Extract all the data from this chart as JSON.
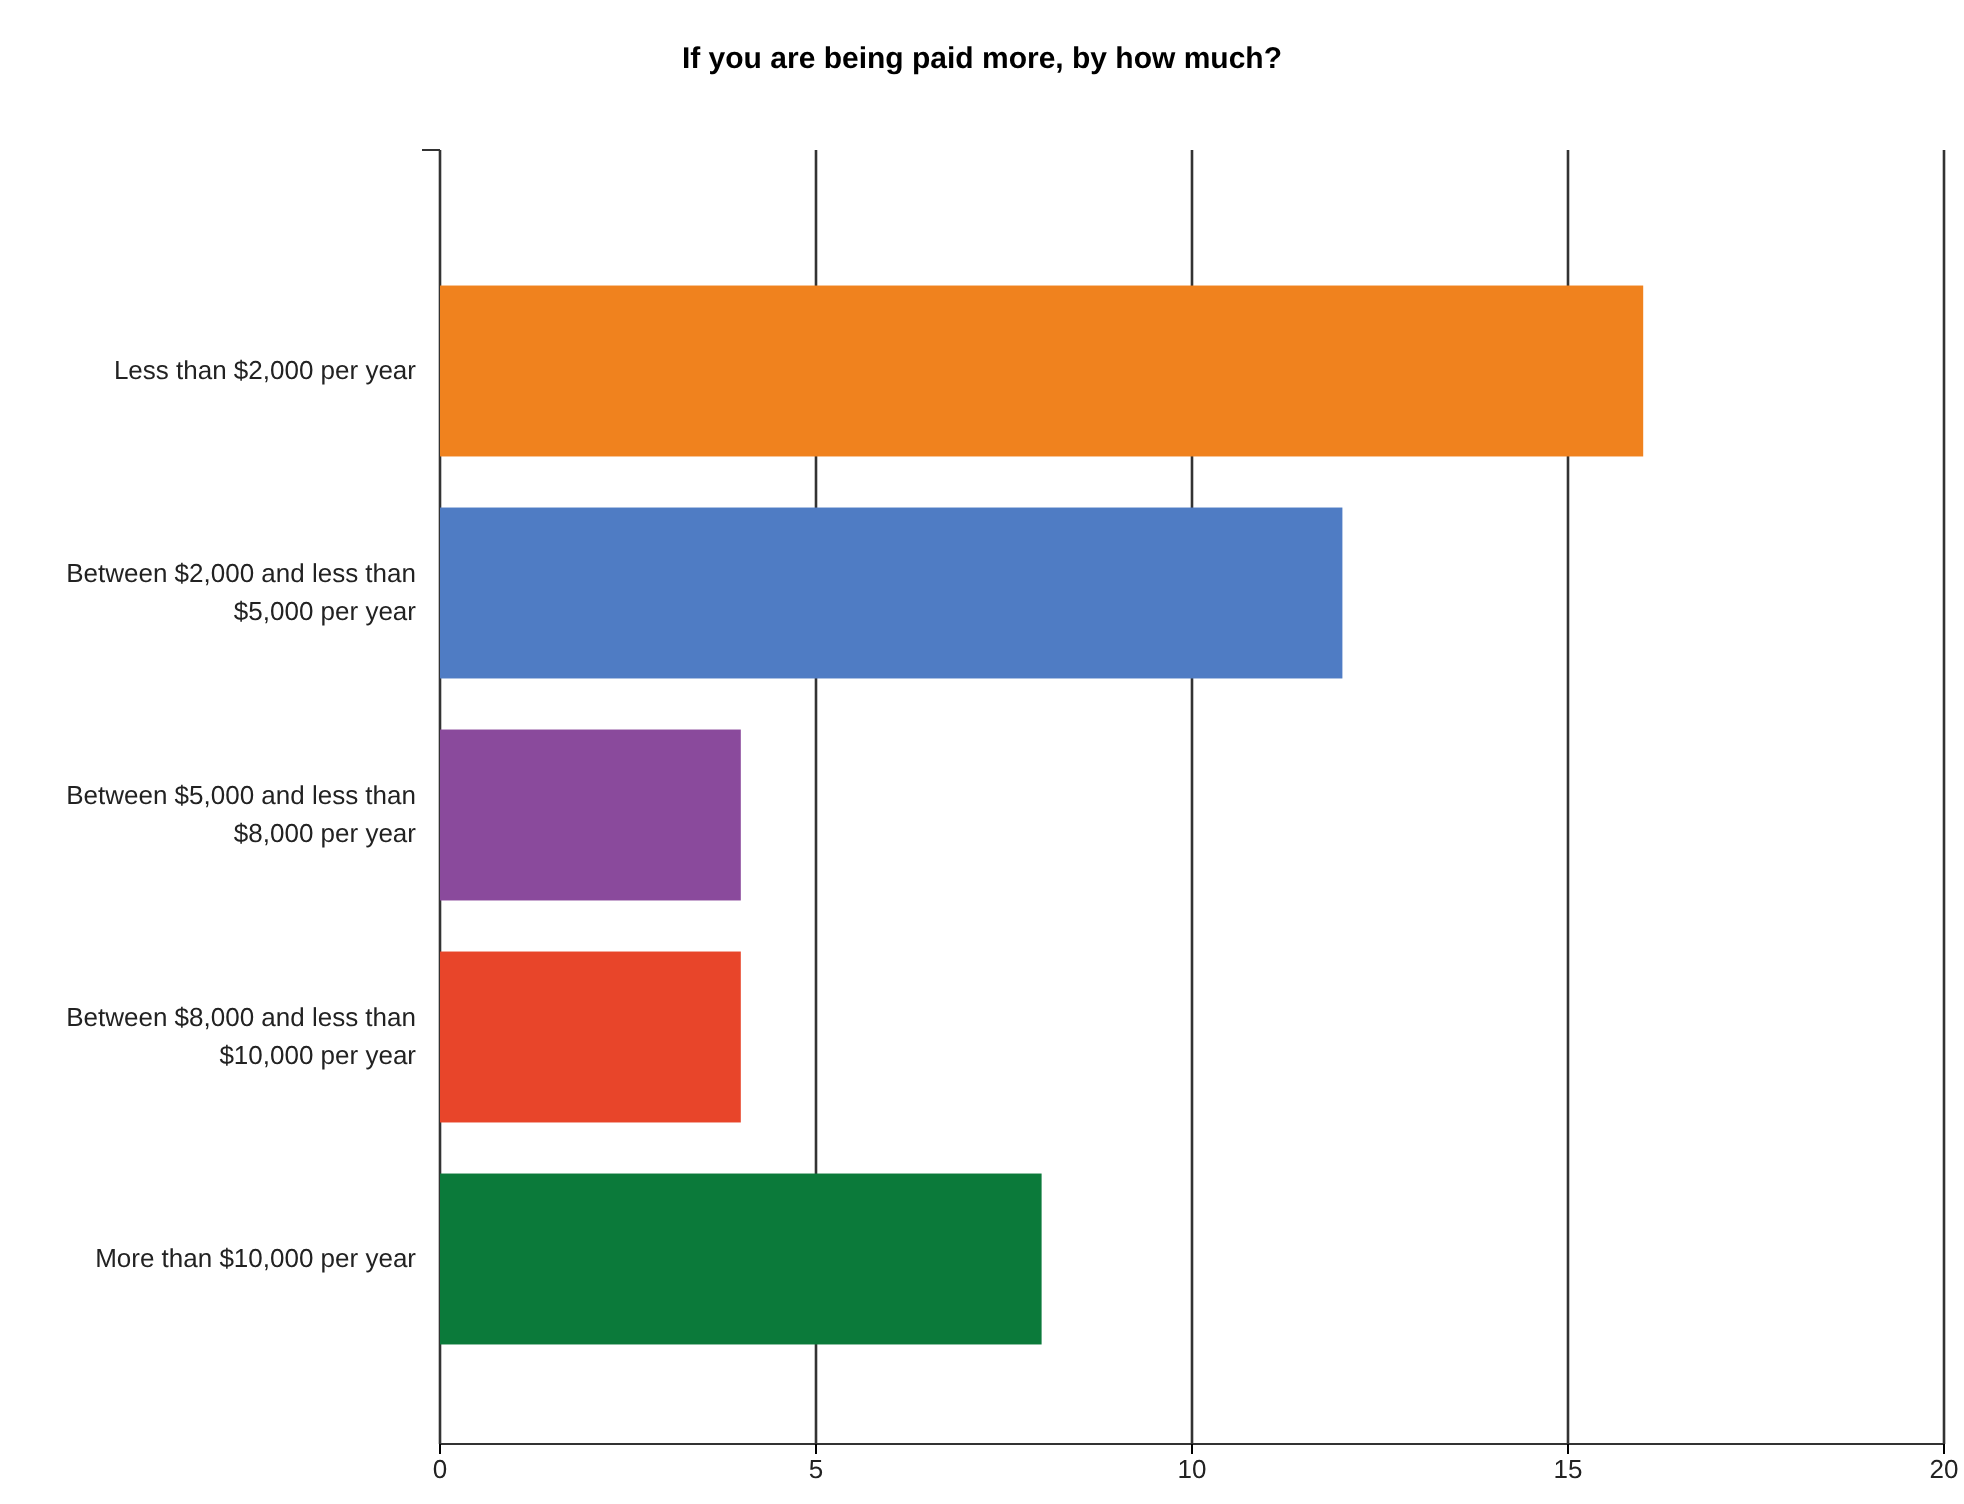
{
  "chart_data": {
    "type": "bar",
    "orientation": "horizontal",
    "title": "If you are being paid more, by how much?",
    "categories": [
      "Less than $2,000 per year",
      "Between $2,000 and less than $5,000 per year",
      "Between $5,000 and less than $8,000 per year",
      "Between $8,000 and less than $10,000 per year",
      "More than $10,000 per year"
    ],
    "values": [
      16,
      12,
      4,
      4,
      8
    ],
    "colors": [
      "#f0821e",
      "#4f7cc4",
      "#8a4a9c",
      "#e8452a",
      "#0b7a3a"
    ],
    "xlim": [
      0,
      20
    ],
    "xticks": [
      0,
      5,
      10,
      15,
      20
    ],
    "grid": "x"
  }
}
